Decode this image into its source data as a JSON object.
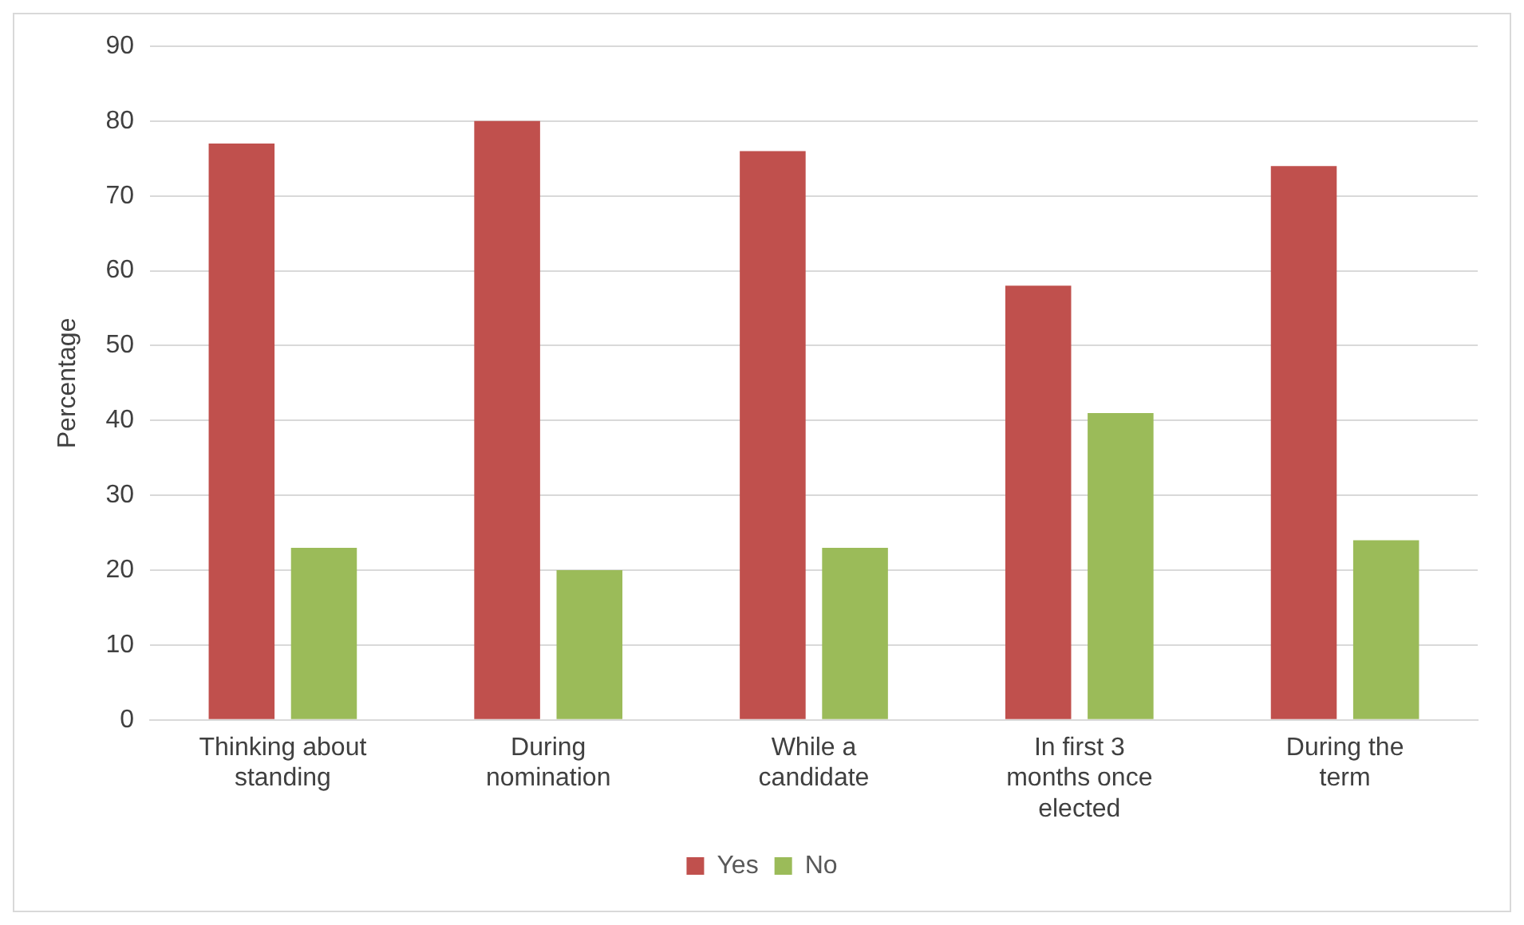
{
  "chart_data": {
    "type": "bar",
    "ylabel": "Percentage",
    "categories": [
      "Thinking about standing",
      "During nomination",
      "While a candidate",
      "In first 3 months once elected",
      "During the term"
    ],
    "series": [
      {
        "name": "Yes",
        "color": "#c0504d",
        "values": [
          77,
          80,
          76,
          58,
          74
        ]
      },
      {
        "name": "No",
        "color": "#9bbb59",
        "values": [
          23,
          20,
          23,
          41,
          24
        ]
      }
    ],
    "ylim": [
      0,
      90
    ],
    "yticks": [
      0,
      10,
      20,
      30,
      40,
      50,
      60,
      70,
      80,
      90
    ],
    "grid": "y",
    "legend": "bottom"
  }
}
